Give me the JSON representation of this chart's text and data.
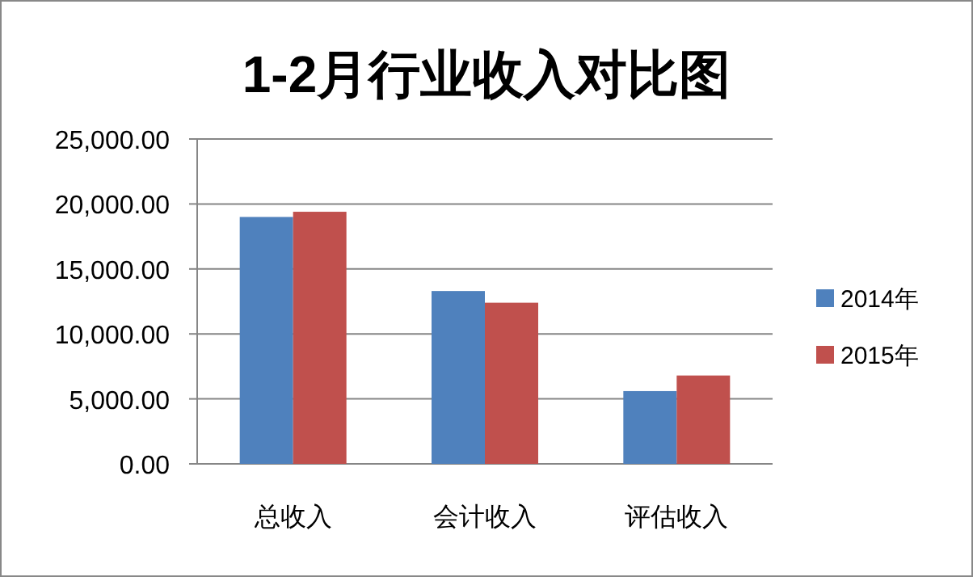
{
  "chart_data": {
    "type": "bar",
    "title": "1-2月行业收入对比图",
    "categories": [
      "总收入",
      "会计收入",
      "评估收入"
    ],
    "series": [
      {
        "name": "2014年",
        "color": "#4f81bd",
        "values": [
          19000,
          13300,
          5600
        ]
      },
      {
        "name": "2015年",
        "color": "#c0504d",
        "values": [
          19400,
          12400,
          6800
        ]
      }
    ],
    "ylim": [
      0,
      25000
    ],
    "yticks": [
      {
        "value": 0,
        "label": "0.00"
      },
      {
        "value": 5000,
        "label": "5,000.00"
      },
      {
        "value": 10000,
        "label": "10,000.00"
      },
      {
        "value": 15000,
        "label": "15,000.00"
      },
      {
        "value": 20000,
        "label": "20,000.00"
      },
      {
        "value": 25000,
        "label": "25,000.00"
      }
    ],
    "grid": "y",
    "legend": "right"
  }
}
